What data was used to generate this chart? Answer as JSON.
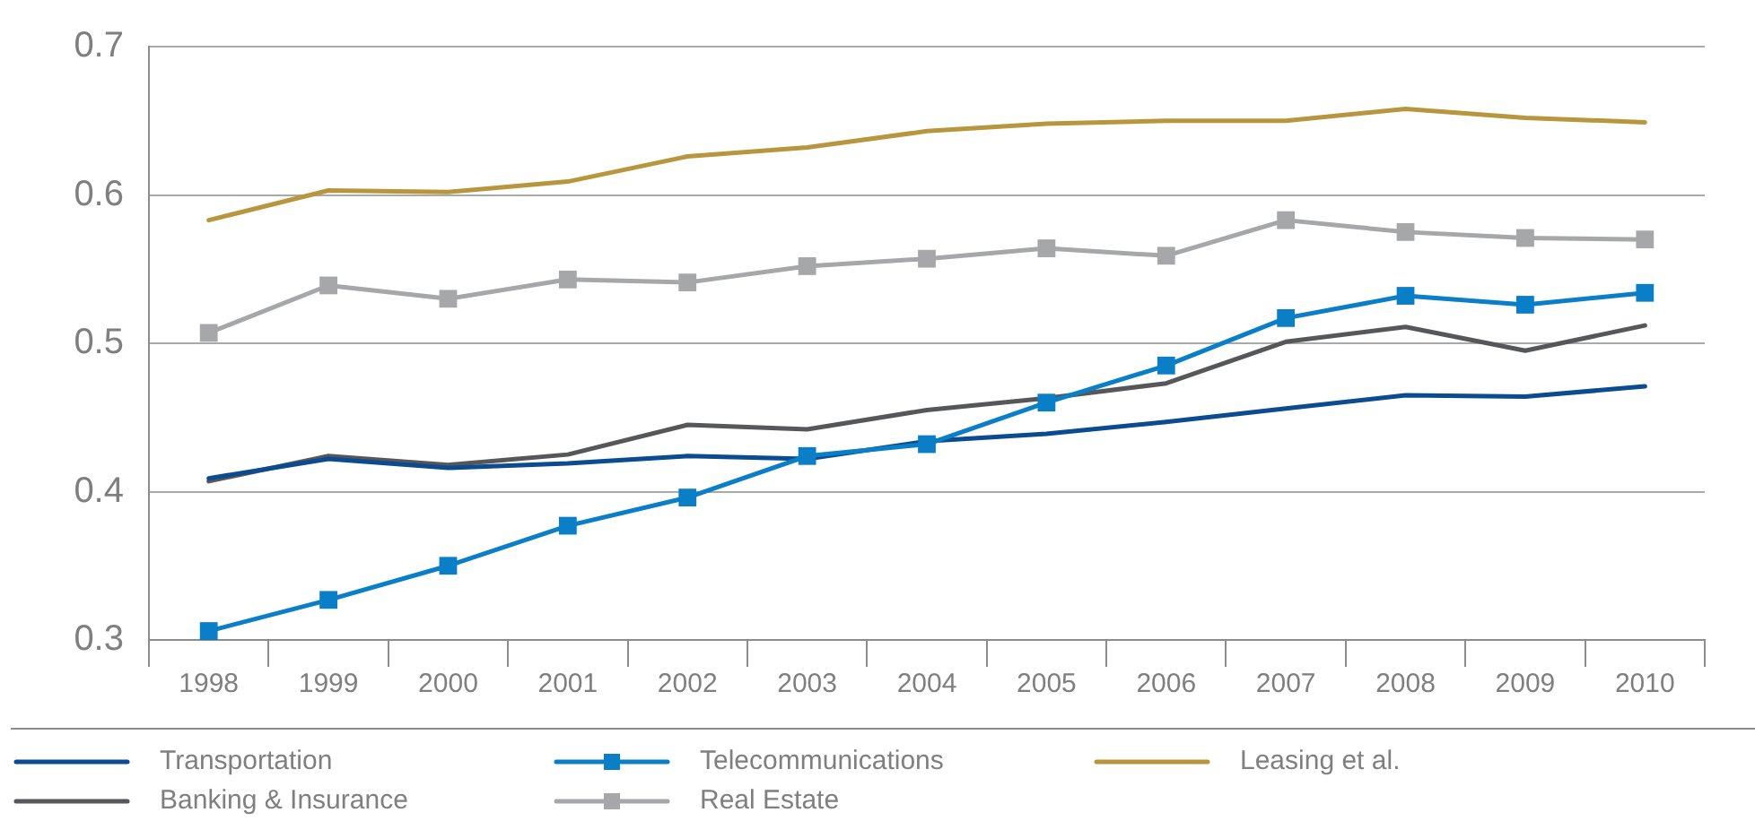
{
  "chart_data": {
    "type": "line",
    "categories": [
      "1998",
      "1999",
      "2000",
      "2001",
      "2002",
      "2003",
      "2004",
      "2005",
      "2006",
      "2007",
      "2008",
      "2009",
      "2010"
    ],
    "series": [
      {
        "name": "Transportation",
        "color": "#0b4b8f",
        "marker": "none",
        "values": [
          0.409,
          0.422,
          0.416,
          0.419,
          0.424,
          0.422,
          0.434,
          0.439,
          0.447,
          0.456,
          0.465,
          0.464,
          0.471
        ]
      },
      {
        "name": "Telecommunications",
        "color": "#0a7ec6",
        "marker": "square",
        "values": [
          0.306,
          0.327,
          0.35,
          0.377,
          0.396,
          0.424,
          0.432,
          0.46,
          0.485,
          0.517,
          0.532,
          0.526,
          0.534
        ]
      },
      {
        "name": "Leasing et al.",
        "color": "#b8963e",
        "marker": "none",
        "values": [
          0.583,
          0.603,
          0.602,
          0.609,
          0.626,
          0.632,
          0.643,
          0.648,
          0.65,
          0.65,
          0.658,
          0.652,
          0.649
        ]
      },
      {
        "name": "Banking & Insurance",
        "color": "#555759",
        "marker": "none",
        "values": [
          0.407,
          0.424,
          0.418,
          0.425,
          0.445,
          0.442,
          0.455,
          0.463,
          0.473,
          0.501,
          0.511,
          0.495,
          0.512
        ]
      },
      {
        "name": "Real Estate",
        "color": "#a6a7a9",
        "marker": "square",
        "values": [
          0.507,
          0.539,
          0.53,
          0.543,
          0.541,
          0.552,
          0.557,
          0.564,
          0.559,
          0.583,
          0.575,
          0.571,
          0.57
        ]
      }
    ],
    "ylim": [
      0.3,
      0.7
    ],
    "yticks": [
      0.3,
      0.4,
      0.5,
      0.6,
      0.7
    ],
    "grid": "y",
    "legend": "bottom",
    "line_style": "solid"
  }
}
